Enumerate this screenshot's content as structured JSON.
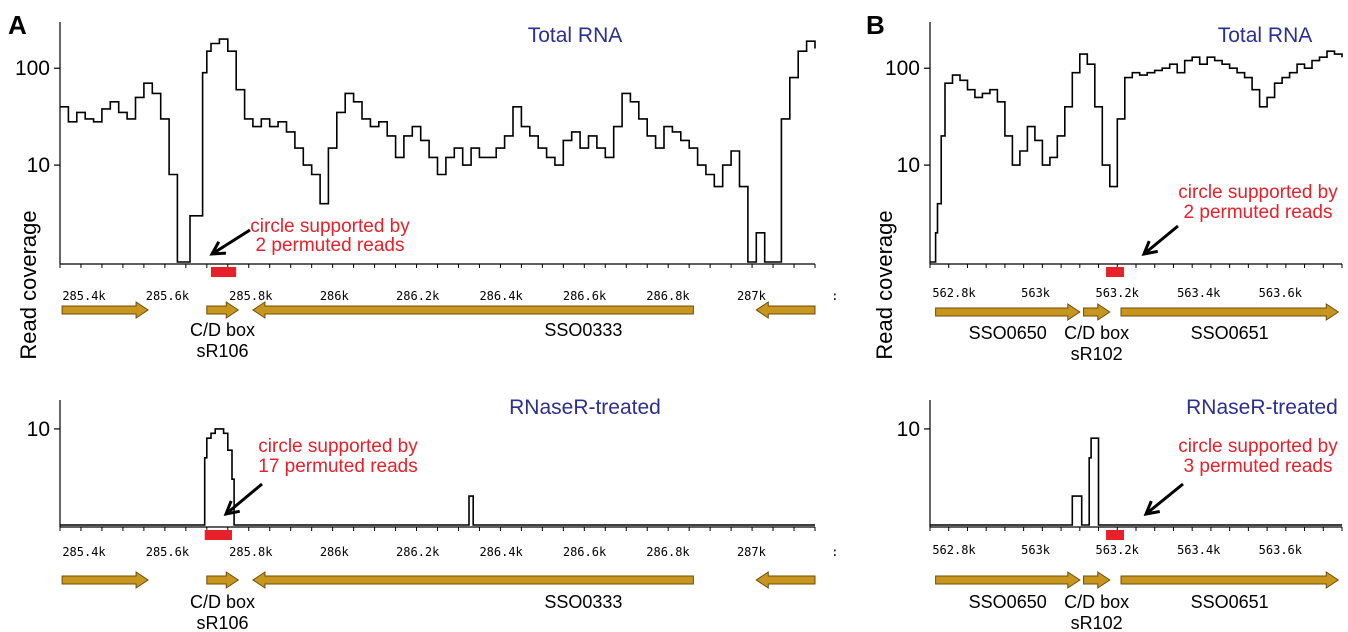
{
  "ylabel": "Read coverage",
  "colors": {
    "gene": "#c8961e",
    "gene_edge": "#6e4c06",
    "circle": "#e8202a",
    "title": "#2b2f8f",
    "annotation": "#e8202a"
  },
  "chart_data": [
    {
      "panel": "A",
      "track": "Total RNA",
      "type": "line",
      "title": "Total RNA",
      "ylabel": "Read coverage",
      "log_y": true,
      "y_ticks": [
        "10",
        "100"
      ],
      "ylim": [
        1,
        300
      ],
      "x_tick_labels": [
        "285.4k",
        "285.6k",
        "285.8k",
        "286k",
        "286.2k",
        "286.4k",
        "286.6k",
        "286.8k",
        "287k",
        ":"
      ],
      "xlim": [
        285300,
        287100
      ],
      "x": [
        285300,
        285320,
        285340,
        285360,
        285380,
        285400,
        285420,
        285440,
        285460,
        285480,
        285500,
        285520,
        285540,
        285560,
        285580,
        285600,
        285610,
        285620,
        285640,
        285650,
        285660,
        285680,
        285700,
        285720,
        285740,
        285760,
        285780,
        285800,
        285820,
        285840,
        285860,
        285880,
        285900,
        285920,
        285940,
        285960,
        285980,
        286000,
        286020,
        286040,
        286060,
        286080,
        286100,
        286120,
        286140,
        286160,
        286180,
        286200,
        286220,
        286240,
        286260,
        286280,
        286300,
        286320,
        286340,
        286360,
        286380,
        286400,
        286420,
        286440,
        286460,
        286480,
        286500,
        286520,
        286540,
        286560,
        286580,
        286600,
        286620,
        286640,
        286660,
        286680,
        286700,
        286720,
        286740,
        286760,
        286780,
        286800,
        286820,
        286840,
        286860,
        286880,
        286900,
        286920,
        286940,
        286960,
        286980,
        287000,
        287020,
        287040,
        287060,
        287080,
        287100
      ],
      "y": [
        40,
        28,
        35,
        30,
        28,
        38,
        45,
        35,
        30,
        50,
        70,
        55,
        30,
        8,
        1,
        1,
        3,
        3,
        90,
        150,
        180,
        200,
        150,
        60,
        30,
        25,
        30,
        25,
        28,
        22,
        15,
        10,
        8,
        4,
        15,
        35,
        55,
        45,
        30,
        25,
        28,
        20,
        12,
        20,
        25,
        18,
        12,
        8,
        12,
        15,
        10,
        15,
        12,
        12,
        15,
        20,
        40,
        25,
        20,
        15,
        12,
        10,
        18,
        22,
        15,
        20,
        15,
        12,
        25,
        55,
        45,
        30,
        20,
        15,
        25,
        22,
        18,
        15,
        10,
        8,
        6,
        10,
        14,
        6,
        1,
        2,
        1,
        1,
        30,
        80,
        150,
        190,
        160
      ],
      "circle": {
        "label": [
          "circle supported by",
          "2 permuted reads"
        ],
        "range": [
          285660,
          285720
        ]
      },
      "genes": [
        {
          "name": "",
          "start": 285305,
          "end": 285510,
          "strand": "+"
        },
        {
          "name": "C/D box\nsR106",
          "start": 285650,
          "end": 285725,
          "strand": "+"
        },
        {
          "name": "SSO0333",
          "start": 285760,
          "end": 286810,
          "strand": "-"
        },
        {
          "name": "",
          "start": 286960,
          "end": 287100,
          "strand": "-"
        }
      ]
    },
    {
      "panel": "A",
      "track": "RNaseR-treated",
      "type": "line",
      "title": "RNaseR-treated",
      "log_y": true,
      "y_ticks": [
        "10"
      ],
      "ylim": [
        1,
        20
      ],
      "x_tick_labels": [
        "285.4k",
        "285.6k",
        "285.8k",
        "286k",
        "286.2k",
        "286.4k",
        "286.6k",
        "286.8k",
        "287k",
        ":"
      ],
      "xlim": [
        285300,
        287100
      ],
      "x": [
        285300,
        285640,
        285645,
        285650,
        285660,
        285670,
        285680,
        285690,
        285700,
        285710,
        285715,
        285720,
        286270,
        286275,
        286280,
        286285,
        287100
      ],
      "y": [
        1,
        1,
        5,
        8,
        9,
        10,
        10,
        9,
        6,
        3,
        1,
        1,
        1,
        2,
        2,
        1,
        1
      ],
      "circle": {
        "label": [
          "circle supported by",
          "17 permuted reads"
        ],
        "range": [
          285645,
          285710
        ]
      },
      "genes": [
        {
          "name": "",
          "start": 285305,
          "end": 285510,
          "strand": "+"
        },
        {
          "name": "C/D box\nsR106",
          "start": 285650,
          "end": 285725,
          "strand": "+"
        },
        {
          "name": "SSO0333",
          "start": 285760,
          "end": 286810,
          "strand": "-"
        },
        {
          "name": "",
          "start": 286960,
          "end": 287100,
          "strand": "-"
        }
      ]
    },
    {
      "panel": "B",
      "track": "Total RNA",
      "type": "line",
      "title": "Total RNA",
      "ylabel": "Read coverage",
      "log_y": true,
      "y_ticks": [
        "10",
        "100"
      ],
      "ylim": [
        1,
        300
      ],
      "x_tick_labels": [
        "562.8k",
        "563k",
        "563.2k",
        "563.4k",
        "563.6k",
        "5"
      ],
      "xlim": [
        562700,
        563800
      ],
      "x": [
        562700,
        562710,
        562715,
        562720,
        562730,
        562740,
        562760,
        562780,
        562800,
        562820,
        562840,
        562860,
        562880,
        562900,
        562920,
        562940,
        562960,
        562980,
        563000,
        563020,
        563040,
        563060,
        563080,
        563100,
        563120,
        563140,
        563160,
        563180,
        563200,
        563220,
        563240,
        563260,
        563280,
        563300,
        563320,
        563340,
        563360,
        563380,
        563400,
        563420,
        563440,
        563460,
        563480,
        563500,
        563520,
        563540,
        563560,
        563580,
        563600,
        563620,
        563640,
        563660,
        563680,
        563700,
        563720,
        563740,
        563760,
        563780,
        563800
      ],
      "y": [
        1,
        1,
        2,
        4,
        20,
        70,
        85,
        75,
        60,
        50,
        55,
        60,
        45,
        20,
        10,
        14,
        25,
        18,
        10,
        12,
        20,
        40,
        90,
        140,
        110,
        40,
        10,
        6,
        30,
        80,
        90,
        85,
        90,
        95,
        100,
        110,
        90,
        120,
        130,
        110,
        130,
        120,
        110,
        100,
        90,
        80,
        60,
        40,
        50,
        70,
        80,
        90,
        110,
        100,
        120,
        130,
        150,
        140,
        130
      ],
      "circle": {
        "label": [
          "circle supported by",
          "2 permuted reads"
        ],
        "range": [
          563170,
          563200
        ]
      },
      "genes": [
        {
          "name": "SSO0650",
          "start": 562715,
          "end": 563100,
          "strand": "+"
        },
        {
          "name": "C/D box\nsR102",
          "start": 563110,
          "end": 563180,
          "strand": "+"
        },
        {
          "name": "SSO0651",
          "start": 563210,
          "end": 563790,
          "strand": "+"
        }
      ]
    },
    {
      "panel": "B",
      "track": "RNaseR-treated",
      "type": "line",
      "title": "RNaseR-treated",
      "log_y": true,
      "y_ticks": [
        "10"
      ],
      "ylim": [
        1,
        20
      ],
      "x_tick_labels": [
        "562.8k",
        "563k",
        "563.2k",
        "563.4k",
        "563.6k",
        "5"
      ],
      "xlim": [
        562700,
        563800
      ],
      "x": [
        562700,
        563080,
        563080,
        563105,
        563105,
        563125,
        563125,
        563130,
        563145,
        563150,
        563150,
        563800
      ],
      "y": [
        1,
        1,
        2,
        2,
        1,
        1,
        5,
        8,
        8,
        5,
        1,
        1
      ],
      "circle": {
        "label": [
          "circle supported by",
          "3 permuted reads"
        ],
        "range": [
          563170,
          563200
        ]
      },
      "genes": [
        {
          "name": "SSO0650",
          "start": 562715,
          "end": 563100,
          "strand": "+"
        },
        {
          "name": "C/D box\nsR102",
          "start": 563110,
          "end": 563180,
          "strand": "+"
        },
        {
          "name": "SSO0651",
          "start": 563210,
          "end": 563790,
          "strand": "+"
        }
      ]
    }
  ]
}
